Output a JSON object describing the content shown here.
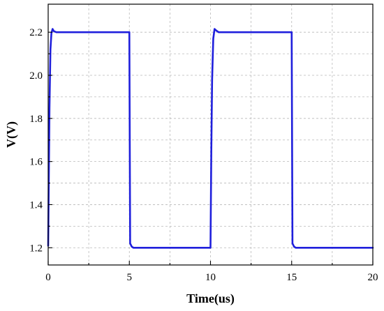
{
  "chart_data": {
    "type": "line",
    "xlabel": "Time(us)",
    "ylabel": "V(V)",
    "xlim": [
      0,
      20
    ],
    "ylim": [
      1.12,
      2.33
    ],
    "xticks": [
      0,
      5,
      10,
      15,
      20
    ],
    "yticks": [
      1.2,
      1.4,
      1.6,
      1.8,
      2.0,
      2.2
    ],
    "xtick_labels": [
      "0",
      "5",
      "10",
      "15",
      "20"
    ],
    "ytick_labels": [
      "1.2",
      "1.4",
      "1.6",
      "1.8",
      "2.0",
      "2.2"
    ],
    "grid": true,
    "legend": "none",
    "series": [
      {
        "color": "#1f1fdc",
        "x": [
          0.0,
          0.03,
          0.08,
          0.14,
          0.2,
          0.27,
          0.35,
          0.5,
          0.7,
          1.0,
          5.0,
          5.05,
          5.15,
          5.25,
          5.4,
          5.6,
          6.0,
          10.0,
          10.05,
          10.1,
          10.17,
          10.25,
          10.35,
          10.5,
          10.7,
          11.0,
          15.0,
          15.05,
          15.15,
          15.25,
          15.4,
          15.6,
          16.0,
          20.0
        ],
        "y": [
          1.21,
          1.45,
          1.85,
          2.12,
          2.195,
          2.215,
          2.205,
          2.2,
          2.2,
          2.2,
          2.2,
          1.22,
          1.205,
          1.2,
          1.2,
          1.2,
          1.2,
          1.2,
          1.65,
          1.98,
          2.17,
          2.215,
          2.208,
          2.2,
          2.2,
          2.2,
          2.2,
          1.22,
          1.205,
          1.2,
          1.2,
          1.2,
          1.2,
          1.2
        ]
      }
    ]
  }
}
